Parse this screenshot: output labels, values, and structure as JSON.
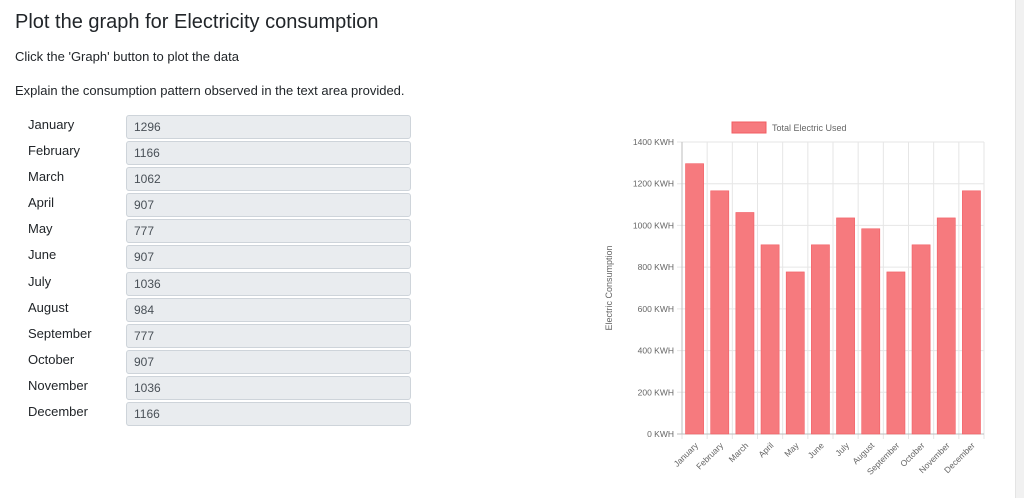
{
  "page": {
    "title": "Plot the graph for Electricity consumption",
    "instruction_graph": "Click the 'Graph' button to plot the data",
    "instruction_explain": "Explain the consumption pattern observed in the text area provided."
  },
  "months": [
    {
      "label": "January",
      "value": "1296"
    },
    {
      "label": "February",
      "value": "1166"
    },
    {
      "label": "March",
      "value": "1062"
    },
    {
      "label": "April",
      "value": "907"
    },
    {
      "label": "May",
      "value": "777"
    },
    {
      "label": "June",
      "value": "907"
    },
    {
      "label": "July",
      "value": "1036"
    },
    {
      "label": "August",
      "value": "984"
    },
    {
      "label": "September",
      "value": "777"
    },
    {
      "label": "October",
      "value": "907"
    },
    {
      "label": "November",
      "value": "1036"
    },
    {
      "label": "December",
      "value": "1166"
    }
  ],
  "chart_data": {
    "type": "bar",
    "categories": [
      "January",
      "February",
      "March",
      "April",
      "May",
      "June",
      "July",
      "August",
      "September",
      "October",
      "November",
      "December"
    ],
    "series": [
      {
        "name": "Total Electric Used",
        "values": [
          1296,
          1166,
          1062,
          907,
          777,
          907,
          1036,
          984,
          777,
          907,
          1036,
          1166
        ]
      }
    ],
    "ylabel": "Electric Consumption",
    "ylim": [
      0,
      1400
    ],
    "yticks": [
      "0 KWH",
      "200 KWH",
      "400 KWH",
      "600 KWH",
      "800 KWH",
      "1000 KWH",
      "1200 KWH",
      "1400 KWH"
    ],
    "ytick_values": [
      0,
      200,
      400,
      600,
      800,
      1000,
      1200,
      1400
    ],
    "grid": true,
    "legend_position": "top",
    "bar_color": "#f67a7e",
    "bar_border": "#f25c62"
  }
}
